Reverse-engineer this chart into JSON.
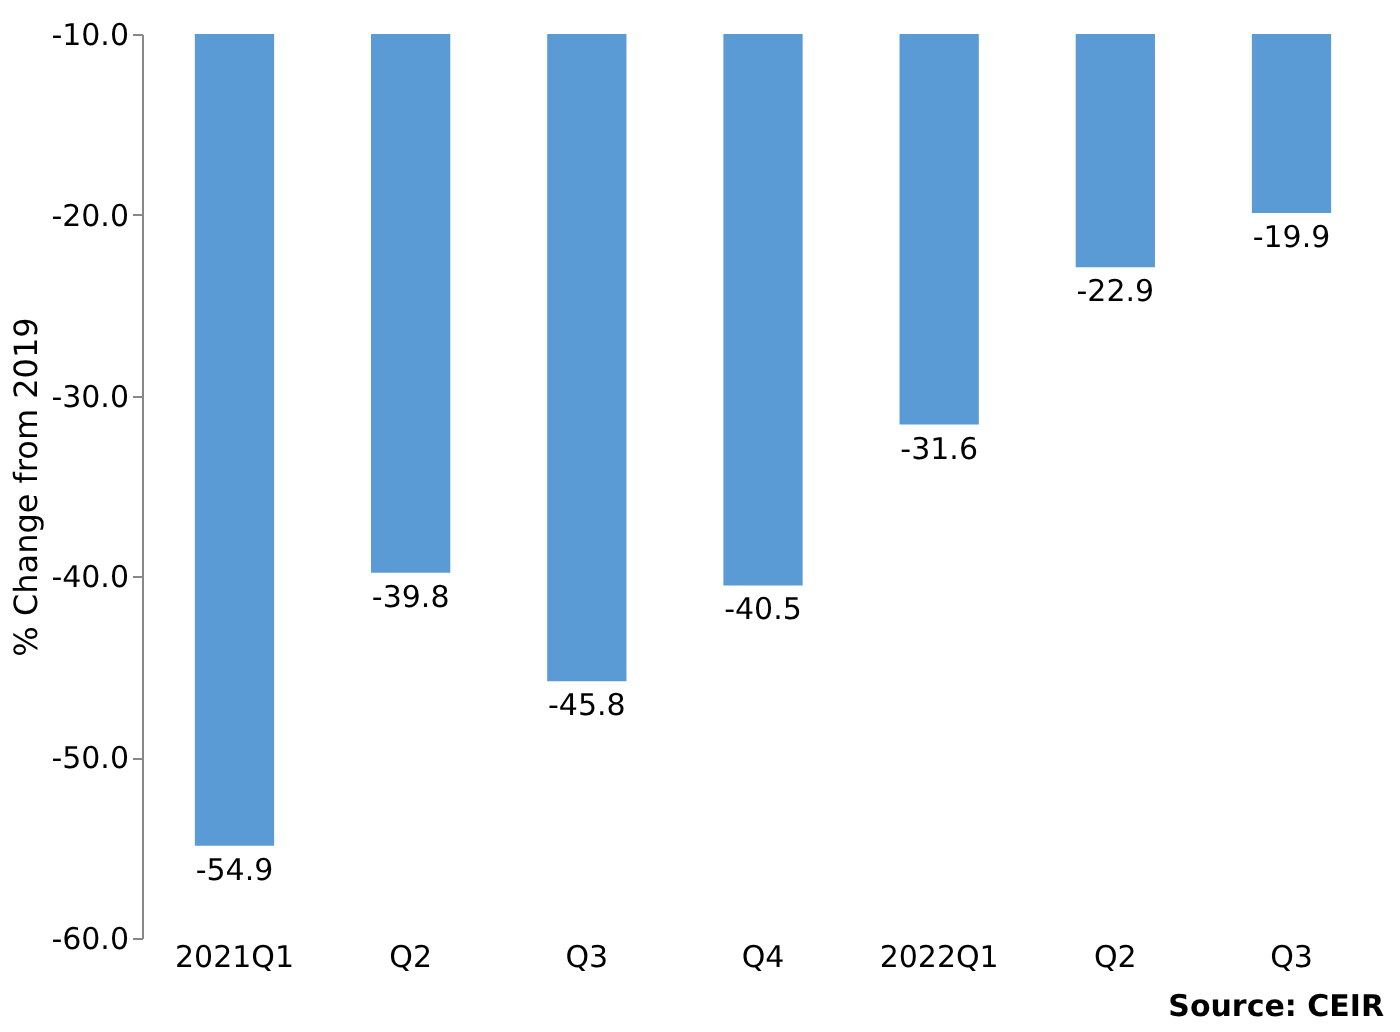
{
  "chart_data": {
    "type": "bar",
    "ylabel": "% Change from 2019",
    "categories": [
      "2021Q1",
      "Q2",
      "Q3",
      "Q4",
      "2022Q1",
      "Q2",
      "Q3"
    ],
    "values": [
      -54.9,
      -39.8,
      -45.8,
      -40.5,
      -31.6,
      -22.9,
      -19.9
    ],
    "color": "#5b9bd5",
    "ylim": [
      -60,
      -10
    ],
    "yticks": [
      {
        "value": -60,
        "label": "-60.0"
      },
      {
        "value": -50,
        "label": "-50.0"
      },
      {
        "value": -40,
        "label": "-40.0"
      },
      {
        "value": -30,
        "label": "-30.0"
      },
      {
        "value": -20,
        "label": "-20.0"
      },
      {
        "value": -10,
        "label": "-10.0"
      }
    ],
    "data_labels": true,
    "grid": false,
    "annotations": [
      "Source: CEIR"
    ]
  }
}
